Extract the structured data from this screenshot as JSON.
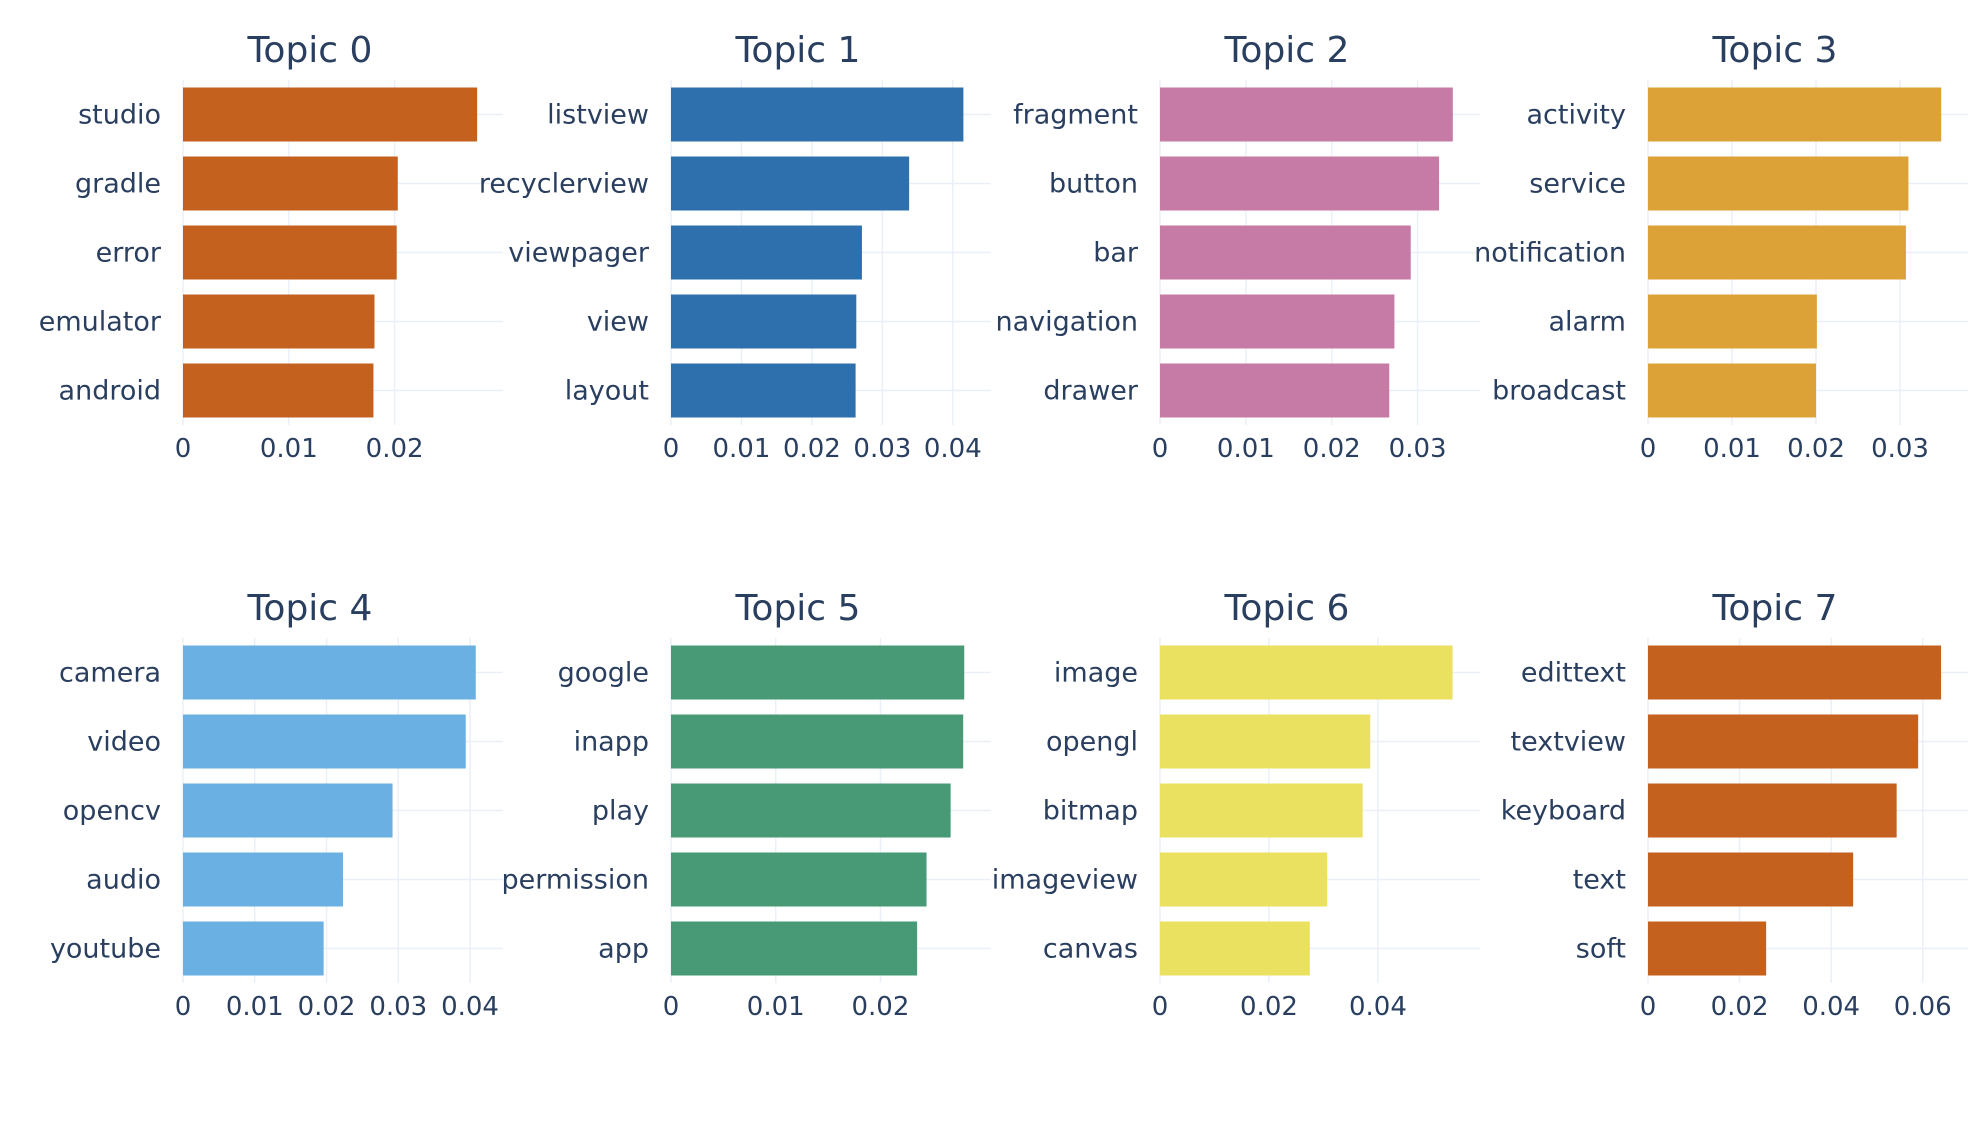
{
  "chart_data": [
    {
      "type": "bar",
      "orientation": "horizontal",
      "title": "Topic 0",
      "categories": [
        "studio",
        "gradle",
        "error",
        "emulator",
        "android"
      ],
      "values": [
        0.0278,
        0.0203,
        0.0202,
        0.0181,
        0.018
      ],
      "color": "#c5611f",
      "xticks": [
        0,
        0.01,
        0.02
      ],
      "xtick_labels": [
        "0",
        "0.01",
        "0.02"
      ],
      "xlim": [
        0,
        0.0293
      ]
    },
    {
      "type": "bar",
      "orientation": "horizontal",
      "title": "Topic 1",
      "categories": [
        "listview",
        "recyclerview",
        "viewpager",
        "view",
        "layout"
      ],
      "values": [
        0.0415,
        0.0338,
        0.0271,
        0.0263,
        0.0262
      ],
      "color": "#2e6fad",
      "xticks": [
        0,
        0.01,
        0.02,
        0.03,
        0.04
      ],
      "xtick_labels": [
        "0",
        "0.01",
        "0.02",
        "0.03",
        "0.04"
      ],
      "xlim": [
        0,
        0.044
      ]
    },
    {
      "type": "bar",
      "orientation": "horizontal",
      "title": "Topic 2",
      "categories": [
        "fragment",
        "button",
        "bar",
        "navigation",
        "drawer"
      ],
      "values": [
        0.0341,
        0.0325,
        0.0292,
        0.0273,
        0.0267
      ],
      "color": "#c67ba6",
      "xticks": [
        0,
        0.01,
        0.02,
        0.03
      ],
      "xtick_labels": [
        "0",
        "0.01",
        "0.02",
        "0.03"
      ],
      "xlim": [
        0,
        0.0361
      ]
    },
    {
      "type": "bar",
      "orientation": "horizontal",
      "title": "Topic 3",
      "categories": [
        "activity",
        "service",
        "notification",
        "alarm",
        "broadcast"
      ],
      "values": [
        0.0349,
        0.031,
        0.0307,
        0.0201,
        0.02
      ],
      "color": "#dca137",
      "xticks": [
        0,
        0.01,
        0.02,
        0.03
      ],
      "xtick_labels": [
        "0",
        "0.01",
        "0.02",
        "0.03"
      ],
      "xlim": [
        0,
        0.0369
      ]
    },
    {
      "type": "bar",
      "orientation": "horizontal",
      "title": "Topic 4",
      "categories": [
        "camera",
        "video",
        "opencv",
        "audio",
        "youtube"
      ],
      "values": [
        0.0408,
        0.0394,
        0.0292,
        0.0223,
        0.0196
      ],
      "color": "#6ab0e2",
      "xticks": [
        0,
        0.01,
        0.02,
        0.03,
        0.04
      ],
      "xtick_labels": [
        "0",
        "0.01",
        "0.02",
        "0.03",
        "0.04"
      ],
      "xlim": [
        0,
        0.0432
      ]
    },
    {
      "type": "bar",
      "orientation": "horizontal",
      "title": "Topic 5",
      "categories": [
        "google",
        "inapp",
        "play",
        "permission",
        "app"
      ],
      "values": [
        0.028,
        0.0279,
        0.0267,
        0.0244,
        0.0235
      ],
      "color": "#479a75",
      "xticks": [
        0,
        0.01,
        0.02
      ],
      "xtick_labels": [
        "0",
        "0.01",
        "0.02"
      ],
      "xlim": [
        0,
        0.0296
      ]
    },
    {
      "type": "bar",
      "orientation": "horizontal",
      "title": "Topic 6",
      "categories": [
        "image",
        "opengl",
        "bitmap",
        "imageview",
        "canvas"
      ],
      "values": [
        0.0537,
        0.0386,
        0.0372,
        0.0307,
        0.0275
      ],
      "color": "#ebe161",
      "xticks": [
        0,
        0.02,
        0.04
      ],
      "xtick_labels": [
        "0",
        "0.02",
        "0.04"
      ],
      "xlim": [
        0,
        0.0569
      ]
    },
    {
      "type": "bar",
      "orientation": "horizontal",
      "title": "Topic 7",
      "categories": [
        "edittext",
        "textview",
        "keyboard",
        "text",
        "soft"
      ],
      "values": [
        0.064,
        0.059,
        0.0543,
        0.0448,
        0.0258
      ],
      "color": "#c5611f",
      "xticks": [
        0,
        0.02,
        0.04,
        0.06
      ],
      "xtick_labels": [
        "0",
        "0.02",
        "0.04",
        "0.06"
      ],
      "xlim": [
        0,
        0.0677
      ]
    }
  ]
}
